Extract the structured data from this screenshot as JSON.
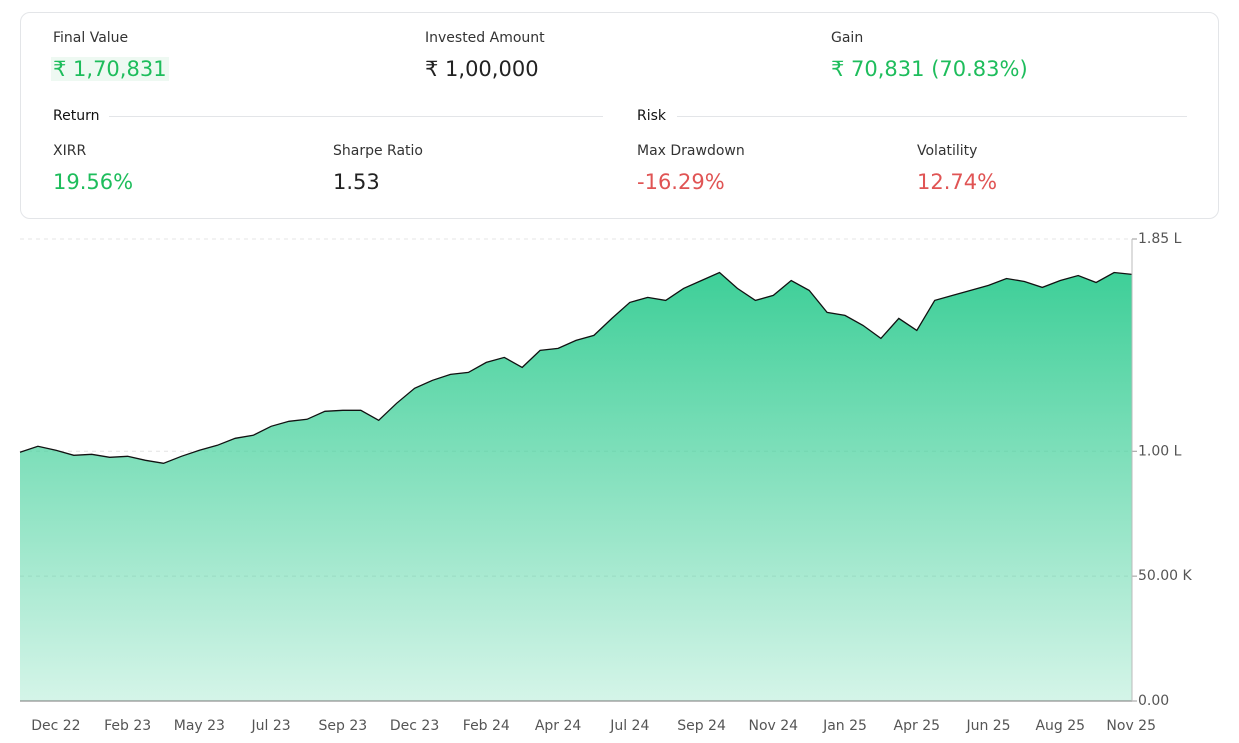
{
  "summary": {
    "final_value": {
      "label": "Final Value",
      "value": "₹ 1,70,831"
    },
    "invested": {
      "label": "Invested Amount",
      "value": "₹ 1,00,000"
    },
    "gain": {
      "label": "Gain",
      "value": "₹ 70,831 (70.83%)"
    },
    "return": {
      "title": "Return",
      "xirr": {
        "label": "XIRR",
        "value": "19.56%"
      },
      "sharpe": {
        "label": "Sharpe Ratio",
        "value": "1.53"
      }
    },
    "risk": {
      "title": "Risk",
      "drawdown": {
        "label": "Max Drawdown",
        "value": "-16.29%"
      },
      "volatility": {
        "label": "Volatility",
        "value": "12.74%"
      }
    }
  },
  "chart_data": {
    "type": "area",
    "categories": [
      null,
      null,
      "Dec 22",
      null,
      null,
      null,
      "Feb 23",
      null,
      null,
      null,
      "May 23",
      null,
      null,
      null,
      "Jul 23",
      null,
      null,
      null,
      "Sep 23",
      null,
      null,
      null,
      "Dec 23",
      null,
      null,
      null,
      "Feb 24",
      null,
      null,
      null,
      "Apr 24",
      null,
      null,
      null,
      "Jul 24",
      null,
      null,
      null,
      "Sep 24",
      null,
      null,
      null,
      "Nov 24",
      null,
      null,
      null,
      "Jan 25",
      null,
      null,
      null,
      "Apr 25",
      null,
      null,
      null,
      "Jun 25",
      null,
      null,
      null,
      "Aug 25",
      null,
      null,
      null,
      "Nov 25"
    ],
    "values": [
      99600,
      102000,
      100400,
      98400,
      98800,
      97600,
      98000,
      96400,
      95200,
      98000,
      100400,
      102400,
      105200,
      106400,
      110000,
      112000,
      112800,
      116000,
      116400,
      116400,
      112400,
      119200,
      125200,
      128400,
      130800,
      131600,
      135600,
      137600,
      133600,
      140400,
      141200,
      144400,
      146400,
      153200,
      159600,
      161600,
      160400,
      165200,
      168400,
      171600,
      165200,
      160400,
      162400,
      168400,
      164400,
      155600,
      154400,
      150400,
      145200,
      153200,
      148400,
      160400,
      162400,
      164400,
      166400,
      169200,
      168000,
      165600,
      168400,
      170400,
      167600,
      171600,
      170831
    ],
    "color": "#3ecf98",
    "line_color": "#111111",
    "ylim": [
      0,
      185000
    ],
    "yticks": [
      {
        "value": 0,
        "label": "0.00"
      },
      {
        "value": 50000,
        "label": "50.00 K"
      },
      {
        "value": 100000,
        "label": "1.00 L"
      },
      {
        "value": 185000,
        "label": "1.85 L"
      }
    ],
    "grid": true
  }
}
